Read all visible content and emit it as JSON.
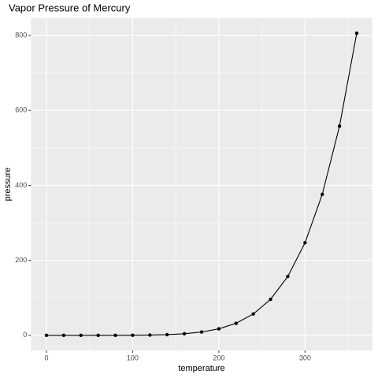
{
  "chart_data": {
    "type": "line",
    "title": "Vapor Pressure of Mercury",
    "x_label": "temperature",
    "y_label": "pressure",
    "x": [
      0,
      20,
      40,
      60,
      80,
      100,
      120,
      140,
      160,
      180,
      200,
      220,
      240,
      260,
      280,
      300,
      320,
      340,
      360
    ],
    "series": [
      {
        "name": "pressure",
        "color": "#000000",
        "values": [
          0.0002,
          0.0012,
          0.006,
          0.03,
          0.09,
          0.27,
          0.75,
          1.85,
          4.2,
          8.8,
          17.3,
          32.1,
          57,
          96,
          157,
          247,
          376,
          558,
          806
        ]
      }
    ],
    "xlim": [
      -18,
      378
    ],
    "ylim": [
      -40.3,
      846.3
    ],
    "xticks": [
      0,
      100,
      200,
      300
    ],
    "yticks": [
      0,
      200,
      400,
      600,
      800
    ],
    "x_minor_ticks": [
      50,
      150,
      250,
      350
    ],
    "y_minor_ticks": [
      100,
      300,
      500,
      700
    ],
    "grid": true,
    "markers": true
  }
}
